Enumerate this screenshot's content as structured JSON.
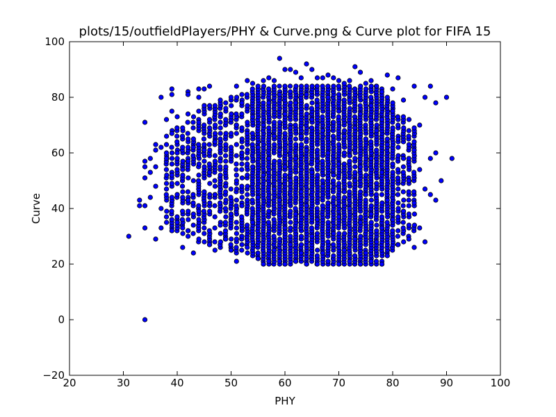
{
  "chart_data": {
    "type": "scatter",
    "title": "plots/15/outfieldPlayers/PHY & Curve.png & Curve plot for FIFA 15",
    "xlabel": "PHY",
    "ylabel": "Curve",
    "xlim": [
      20,
      100
    ],
    "ylim": [
      -20,
      100
    ],
    "xticks": [
      "20",
      "30",
      "40",
      "50",
      "60",
      "70",
      "80",
      "90",
      "100"
    ],
    "yticks": [
      "−20",
      "0",
      "20",
      "40",
      "60",
      "80",
      "100"
    ],
    "grid": false,
    "legend": "none",
    "marker_color": "#0000ff",
    "marker_edge": "#000000",
    "points": [
      [
        31,
        30
      ],
      [
        34,
        0
      ],
      [
        33,
        43
      ],
      [
        33,
        41
      ],
      [
        34,
        71
      ],
      [
        34,
        57
      ],
      [
        34,
        55
      ],
      [
        34,
        51
      ],
      [
        34,
        41
      ],
      [
        34,
        33
      ],
      [
        35,
        58
      ],
      [
        35,
        53
      ],
      [
        35,
        44
      ],
      [
        36,
        63
      ],
      [
        36,
        61
      ],
      [
        36,
        55
      ],
      [
        36,
        48
      ],
      [
        36,
        29
      ],
      [
        37,
        80
      ],
      [
        37,
        62
      ],
      [
        37,
        40
      ],
      [
        37,
        33
      ],
      [
        38,
        72
      ],
      [
        38,
        58
      ],
      [
        38,
        47
      ],
      [
        38,
        37
      ],
      [
        39,
        83
      ],
      [
        39,
        81
      ],
      [
        39,
        75
      ],
      [
        39,
        67
      ],
      [
        39,
        52
      ],
      [
        39,
        32
      ],
      [
        40,
        73
      ],
      [
        40,
        60
      ],
      [
        40,
        45
      ],
      [
        40,
        35
      ],
      [
        41,
        69
      ],
      [
        41,
        54
      ],
      [
        41,
        33
      ],
      [
        41,
        26
      ],
      [
        42,
        82
      ],
      [
        42,
        81
      ],
      [
        42,
        74
      ],
      [
        42,
        57
      ],
      [
        42,
        43
      ],
      [
        42,
        32
      ],
      [
        43,
        62
      ],
      [
        43,
        50
      ],
      [
        43,
        24
      ],
      [
        44,
        83
      ],
      [
        44,
        80
      ],
      [
        44,
        71
      ],
      [
        44,
        39
      ],
      [
        45,
        83
      ],
      [
        45,
        77
      ],
      [
        45,
        61
      ],
      [
        45,
        31
      ],
      [
        46,
        84
      ],
      [
        46,
        69
      ],
      [
        46,
        53
      ],
      [
        46,
        27
      ],
      [
        47,
        64
      ],
      [
        47,
        45
      ],
      [
        47,
        25
      ],
      [
        48,
        79
      ],
      [
        48,
        57
      ],
      [
        48,
        34
      ],
      [
        49,
        72
      ],
      [
        49,
        48
      ],
      [
        49,
        29
      ],
      [
        50,
        80
      ],
      [
        50,
        62
      ],
      [
        50,
        38
      ],
      [
        50,
        25
      ],
      [
        51,
        84
      ],
      [
        51,
        70
      ],
      [
        51,
        52
      ],
      [
        51,
        21
      ],
      [
        52,
        78
      ],
      [
        52,
        60
      ],
      [
        52,
        41
      ],
      [
        52,
        30
      ],
      [
        53,
        86
      ],
      [
        53,
        67
      ],
      [
        53,
        45
      ],
      [
        53,
        26
      ],
      [
        54,
        85
      ],
      [
        54,
        73
      ],
      [
        54,
        55
      ],
      [
        54,
        35
      ],
      [
        55,
        84
      ],
      [
        55,
        62
      ],
      [
        55,
        44
      ],
      [
        55,
        22
      ],
      [
        56,
        86
      ],
      [
        56,
        70
      ],
      [
        56,
        52
      ],
      [
        56,
        20
      ],
      [
        57,
        87
      ],
      [
        57,
        78
      ],
      [
        57,
        58
      ],
      [
        57,
        39
      ],
      [
        57,
        21
      ],
      [
        58,
        86
      ],
      [
        58,
        66
      ],
      [
        58,
        47
      ],
      [
        58,
        25
      ],
      [
        59,
        94
      ],
      [
        59,
        81
      ],
      [
        59,
        61
      ],
      [
        59,
        43
      ],
      [
        59,
        21
      ],
      [
        60,
        90
      ],
      [
        60,
        74
      ],
      [
        60,
        55
      ],
      [
        60,
        33
      ],
      [
        60,
        20
      ],
      [
        61,
        90
      ],
      [
        61,
        69
      ],
      [
        61,
        50
      ],
      [
        61,
        27
      ],
      [
        62,
        89
      ],
      [
        62,
        78
      ],
      [
        62,
        58
      ],
      [
        62,
        38
      ],
      [
        62,
        21
      ],
      [
        63,
        87
      ],
      [
        63,
        66
      ],
      [
        63,
        46
      ],
      [
        63,
        24
      ],
      [
        64,
        92
      ],
      [
        64,
        81
      ],
      [
        64,
        61
      ],
      [
        64,
        41
      ],
      [
        64,
        20
      ],
      [
        65,
        90
      ],
      [
        65,
        72
      ],
      [
        65,
        53
      ],
      [
        65,
        30
      ],
      [
        66,
        87
      ],
      [
        66,
        77
      ],
      [
        66,
        57
      ],
      [
        66,
        36
      ],
      [
        66,
        20
      ],
      [
        67,
        87
      ],
      [
        67,
        68
      ],
      [
        67,
        48
      ],
      [
        67,
        24
      ],
      [
        68,
        88
      ],
      [
        68,
        80
      ],
      [
        68,
        60
      ],
      [
        68,
        42
      ],
      [
        68,
        21
      ],
      [
        69,
        87
      ],
      [
        69,
        71
      ],
      [
        69,
        52
      ],
      [
        69,
        31
      ],
      [
        70,
        86
      ],
      [
        70,
        75
      ],
      [
        70,
        56
      ],
      [
        70,
        37
      ],
      [
        70,
        20
      ],
      [
        71,
        85
      ],
      [
        71,
        66
      ],
      [
        71,
        46
      ],
      [
        71,
        25
      ],
      [
        72,
        86
      ],
      [
        72,
        79
      ],
      [
        72,
        59
      ],
      [
        72,
        40
      ],
      [
        72,
        21
      ],
      [
        73,
        91
      ],
      [
        73,
        69
      ],
      [
        73,
        50
      ],
      [
        73,
        29
      ],
      [
        74,
        89
      ],
      [
        74,
        74
      ],
      [
        74,
        55
      ],
      [
        74,
        35
      ],
      [
        74,
        20
      ],
      [
        75,
        85
      ],
      [
        75,
        65
      ],
      [
        75,
        45
      ],
      [
        75,
        24
      ],
      [
        76,
        86
      ],
      [
        76,
        77
      ],
      [
        76,
        58
      ],
      [
        76,
        38
      ],
      [
        76,
        21
      ],
      [
        77,
        84
      ],
      [
        77,
        68
      ],
      [
        77,
        49
      ],
      [
        77,
        28
      ],
      [
        78,
        82
      ],
      [
        78,
        72
      ],
      [
        78,
        53
      ],
      [
        78,
        33
      ],
      [
        78,
        20
      ],
      [
        79,
        88
      ],
      [
        79,
        63
      ],
      [
        79,
        43
      ],
      [
        79,
        23
      ],
      [
        80,
        83
      ],
      [
        80,
        75
      ],
      [
        80,
        56
      ],
      [
        80,
        36
      ],
      [
        81,
        87
      ],
      [
        81,
        65
      ],
      [
        81,
        47
      ],
      [
        81,
        27
      ],
      [
        82,
        79
      ],
      [
        82,
        58
      ],
      [
        82,
        39
      ],
      [
        83,
        68
      ],
      [
        83,
        50
      ],
      [
        83,
        29
      ],
      [
        84,
        84
      ],
      [
        84,
        61
      ],
      [
        84,
        42
      ],
      [
        84,
        26
      ],
      [
        85,
        70
      ],
      [
        85,
        54
      ],
      [
        85,
        33
      ],
      [
        86,
        80
      ],
      [
        86,
        47
      ],
      [
        86,
        28
      ],
      [
        87,
        84
      ],
      [
        87,
        58
      ],
      [
        87,
        45
      ],
      [
        88,
        78
      ],
      [
        88,
        60
      ],
      [
        88,
        43
      ],
      [
        89,
        50
      ],
      [
        90,
        80
      ],
      [
        91,
        58
      ]
    ]
  }
}
